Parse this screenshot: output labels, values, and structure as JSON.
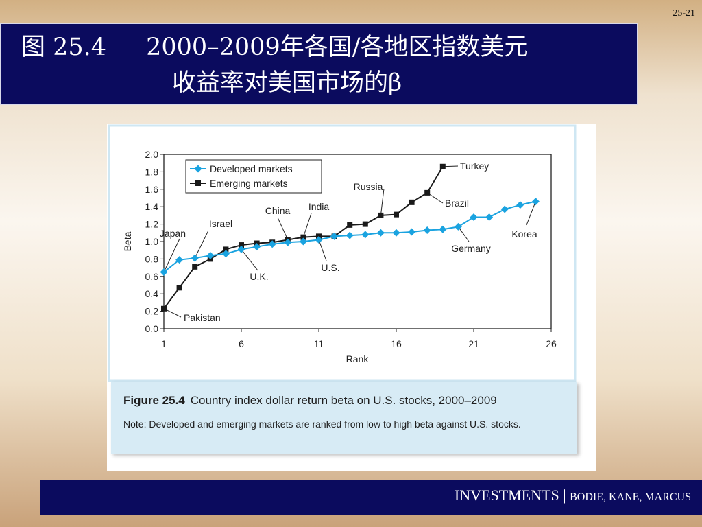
{
  "page_number": "25-21",
  "title": {
    "line1_a": "图 25.4",
    "line1_b": "2000–2009年各国/各地区指数美元",
    "line2": "收益率对美国市场的β"
  },
  "caption": {
    "label": "Figure 25.4",
    "title": "Country index dollar return beta on U.S. stocks, 2000–2009",
    "note": "Note: Developed and emerging markets are ranked from low to high beta against U.S. stocks."
  },
  "footer": {
    "main": "INVESTMENTS",
    "sep": "|",
    "authors": "BODIE, KANE, MARCUS"
  },
  "colors": {
    "developed": "#1aa3e0",
    "emerging": "#1a1a1a",
    "title_bg": "#0b0b5e"
  },
  "chart_data": {
    "type": "line",
    "xlabel": "Rank",
    "ylabel": "Beta",
    "xlim": [
      1,
      26
    ],
    "ylim": [
      0.0,
      2.0
    ],
    "x_ticks": [
      "1",
      "6",
      "11",
      "16",
      "21",
      "26"
    ],
    "y_ticks": [
      "0.0",
      "0.2",
      "0.4",
      "0.6",
      "0.8",
      "1.0",
      "1.2",
      "1.4",
      "1.6",
      "1.8",
      "2.0"
    ],
    "grid": false,
    "legend_position": "top-left",
    "series": [
      {
        "name": "Developed markets",
        "marker": "diamond",
        "x": [
          1,
          2,
          3,
          4,
          5,
          6,
          7,
          8,
          9,
          10,
          11,
          12,
          13,
          14,
          15,
          16,
          17,
          18,
          19,
          20,
          21,
          22,
          23,
          24,
          25
        ],
        "y": [
          0.65,
          0.79,
          0.81,
          0.84,
          0.86,
          0.91,
          0.94,
          0.97,
          0.99,
          1.0,
          1.02,
          1.06,
          1.07,
          1.08,
          1.1,
          1.1,
          1.11,
          1.13,
          1.14,
          1.17,
          1.28,
          1.28,
          1.37,
          1.42,
          1.46
        ]
      },
      {
        "name": "Emerging markets",
        "marker": "square",
        "x": [
          1,
          2,
          3,
          4,
          5,
          6,
          7,
          8,
          9,
          10,
          11,
          12,
          13,
          14,
          15,
          16,
          17,
          18,
          19
        ],
        "y": [
          0.23,
          0.47,
          0.71,
          0.8,
          0.91,
          0.96,
          0.98,
          0.99,
          1.02,
          1.05,
          1.06,
          1.06,
          1.19,
          1.2,
          1.3,
          1.31,
          1.45,
          1.56,
          1.86
        ]
      }
    ],
    "annotations": [
      {
        "label": "Japan",
        "series": 0,
        "x": 1,
        "y": 0.65
      },
      {
        "label": "Israel",
        "series": 0,
        "x": 3,
        "y": 0.81
      },
      {
        "label": "China",
        "series": 1,
        "x": 9,
        "y": 1.02
      },
      {
        "label": "India",
        "series": 1,
        "x": 10,
        "y": 1.05
      },
      {
        "label": "U.K.",
        "series": 0,
        "x": 6,
        "y": 0.91
      },
      {
        "label": "U.S.",
        "series": 0,
        "x": 11,
        "y": 1.02
      },
      {
        "label": "Pakistan",
        "series": 1,
        "x": 1,
        "y": 0.23
      },
      {
        "label": "Russia",
        "series": 1,
        "x": 15,
        "y": 1.3
      },
      {
        "label": "Turkey",
        "series": 1,
        "x": 19,
        "y": 1.86
      },
      {
        "label": "Brazil",
        "series": 1,
        "x": 18,
        "y": 1.56
      },
      {
        "label": "Germany",
        "series": 0,
        "x": 20,
        "y": 1.17
      },
      {
        "label": "Korea",
        "series": 0,
        "x": 25,
        "y": 1.46
      }
    ]
  }
}
